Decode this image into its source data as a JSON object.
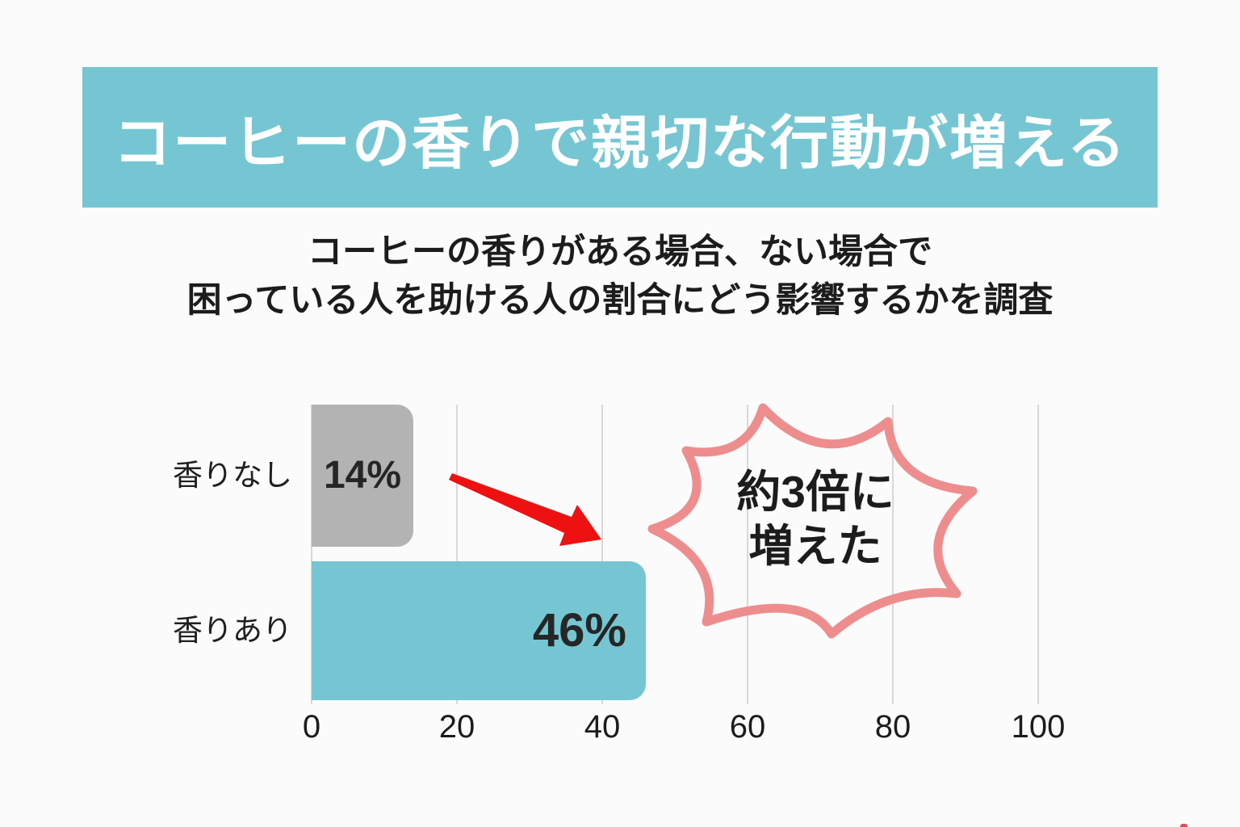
{
  "banner": {
    "title": "コーヒーの香りで親切な行動が増える"
  },
  "subtitle": {
    "line1": "コーヒーの香りがある場合、ない場合で",
    "line2": "困っている人を助ける人の割合にどう影響するかを調査"
  },
  "chart_data": {
    "type": "bar",
    "orientation": "horizontal",
    "title": "",
    "categories": [
      "香りなし",
      "香りあり"
    ],
    "values": [
      14,
      46
    ],
    "value_labels": [
      "14%",
      "46%"
    ],
    "unit": "%",
    "x_ticks": [
      0,
      20,
      40,
      60,
      80,
      100
    ],
    "xlim": [
      0,
      100
    ],
    "grid": true,
    "bar_colors": [
      "#b3b3b3",
      "#75c6d2"
    ]
  },
  "annotation": {
    "burst_line1": "約3倍に",
    "burst_line2": "増えた"
  },
  "colors": {
    "teal": "#75c6d2",
    "gray_bar": "#b3b3b3",
    "burst_pink": "#ee8d8d",
    "arrow_red": "#ee1111",
    "speck_red": "#d9505e",
    "background": "#fbfbfb",
    "text_dark": "#1c1c1c"
  }
}
